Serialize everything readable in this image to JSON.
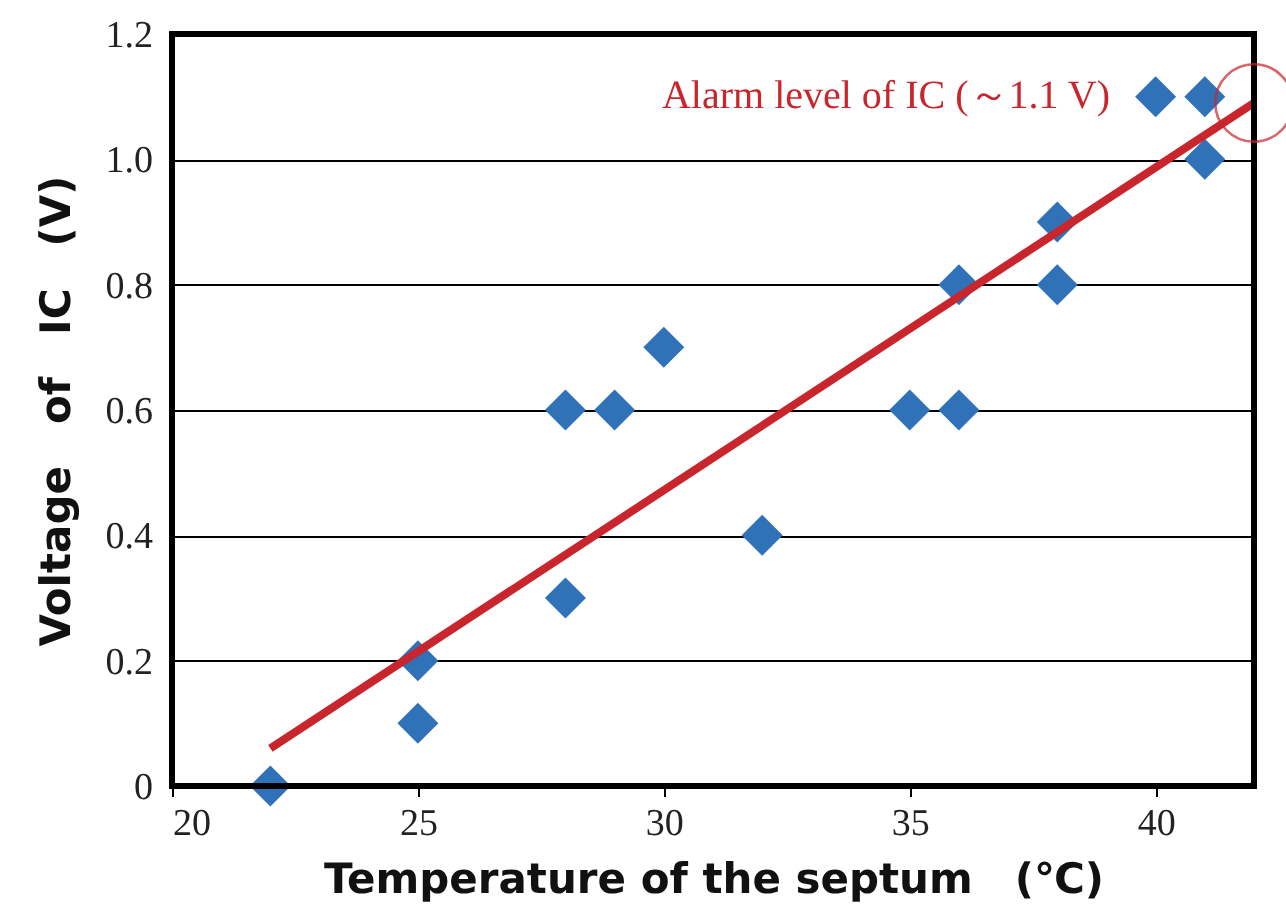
{
  "chart_data": {
    "type": "scatter",
    "xlabel": "Temperature of the septum　(℃)",
    "ylabel": "Voltage　of　IC　(V)",
    "x": [
      22,
      25,
      25,
      28,
      28,
      29,
      30,
      32,
      35,
      36,
      36,
      38,
      38,
      40,
      41,
      41
    ],
    "series": [
      {
        "color": "#2f72b8",
        "marker": "diamond",
        "values": [
          0,
          0.2,
          0.1,
          0.6,
          0.3,
          0.6,
          0.7,
          0.4,
          0.6,
          0.8,
          0.6,
          0.9,
          0.8,
          1.1,
          1.1,
          1.0
        ]
      },
      {
        "type": "line",
        "line_style": "solid",
        "color": "#c8252c",
        "x": [
          22,
          42
        ],
        "values": [
          0.06,
          1.09
        ]
      }
    ],
    "xlim": [
      20,
      42
    ],
    "xticks": [
      20,
      25,
      30,
      35,
      40
    ],
    "ylim": [
      0,
      1.2
    ],
    "yticks": [
      0,
      0.2,
      0.4,
      0.6,
      0.8,
      {
        "value": 1.0,
        "label": "1.0"
      },
      1.2
    ],
    "grid": "y",
    "annotations": [
      "Alarm level of IC (～1.1 V)"
    ]
  }
}
